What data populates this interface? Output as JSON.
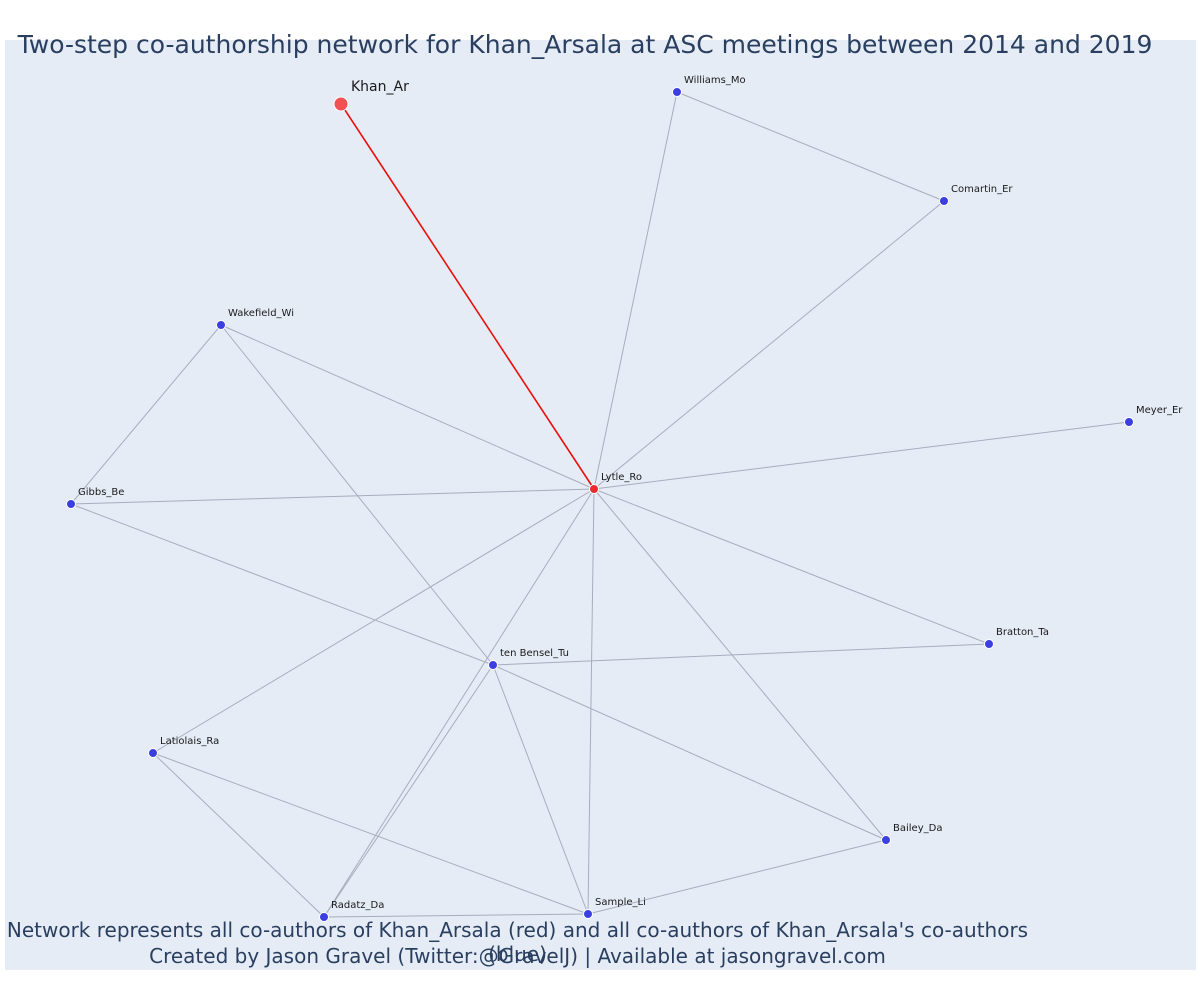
{
  "title": "Two-step co-authorship network for Khan_Arsala at ASC meetings between 2014 and 2019",
  "caption": {
    "line1": "Network represents all co-authors of Khan_Arsala (red) and all co-authors of Khan_Arsala's co-authors (blue)",
    "line2": "Created by Jason Gravel (Twitter:@GravelJ) | Available at jasongravel.com"
  },
  "colors": {
    "background": "#e5ecf6",
    "direct_coauthor": "#ef2a2a",
    "focal_author": "#f15153",
    "second_step_coauthor": "#3b3fe0",
    "edge": "#a9acbd",
    "focal_edge": "#e8100c"
  },
  "nodes": [
    {
      "id": "Khan_Ar",
      "label": "Khan_Ar",
      "group": "focal"
    },
    {
      "id": "Lytle_Ro",
      "label": "Lytle_Ro",
      "group": "direct"
    },
    {
      "id": "Williams_Mo",
      "label": "Williams_Mo",
      "group": "second"
    },
    {
      "id": "Comartin_Er",
      "label": "Comartin_Er",
      "group": "second"
    },
    {
      "id": "Wakefield_Wi",
      "label": "Wakefield_Wi",
      "group": "second"
    },
    {
      "id": "Meyer_Er",
      "label": "Meyer_Er",
      "group": "second"
    },
    {
      "id": "Gibbs_Be",
      "label": "Gibbs_Be",
      "group": "second"
    },
    {
      "id": "Bratton_Ta",
      "label": "Bratton_Ta",
      "group": "second"
    },
    {
      "id": "ten Bensel_Tu",
      "label": "ten Bensel_Tu",
      "group": "second"
    },
    {
      "id": "Latiolais_Ra",
      "label": "Latiolais_Ra",
      "group": "second"
    },
    {
      "id": "Bailey_Da",
      "label": "Bailey_Da",
      "group": "second"
    },
    {
      "id": "Radatz_Da",
      "label": "Radatz_Da",
      "group": "second"
    },
    {
      "id": "Sample_Li",
      "label": "Sample_Li",
      "group": "second"
    }
  ],
  "edges": [
    [
      "Khan_Ar",
      "Lytle_Ro"
    ],
    [
      "Lytle_Ro",
      "Williams_Mo"
    ],
    [
      "Lytle_Ro",
      "Comartin_Er"
    ],
    [
      "Lytle_Ro",
      "Wakefield_Wi"
    ],
    [
      "Lytle_Ro",
      "Meyer_Er"
    ],
    [
      "Lytle_Ro",
      "Gibbs_Be"
    ],
    [
      "Lytle_Ro",
      "Bratton_Ta"
    ],
    [
      "Lytle_Ro",
      "Latiolais_Ra"
    ],
    [
      "Lytle_Ro",
      "Bailey_Da"
    ],
    [
      "Lytle_Ro",
      "Radatz_Da"
    ],
    [
      "Lytle_Ro",
      "Sample_Li"
    ],
    [
      "Williams_Mo",
      "Comartin_Er"
    ],
    [
      "Wakefield_Wi",
      "Gibbs_Be"
    ],
    [
      "Wakefield_Wi",
      "ten Bensel_Tu"
    ],
    [
      "Gibbs_Be",
      "ten Bensel_Tu"
    ],
    [
      "ten Bensel_Tu",
      "Bratton_Ta"
    ],
    [
      "ten Bensel_Tu",
      "Bailey_Da"
    ],
    [
      "ten Bensel_Tu",
      "Sample_Li"
    ],
    [
      "ten Bensel_Tu",
      "Radatz_Da"
    ],
    [
      "Latiolais_Ra",
      "Radatz_Da"
    ],
    [
      "Latiolais_Ra",
      "Sample_Li"
    ],
    [
      "Radatz_Da",
      "Sample_Li"
    ],
    [
      "Sample_Li",
      "Bailey_Da"
    ]
  ]
}
